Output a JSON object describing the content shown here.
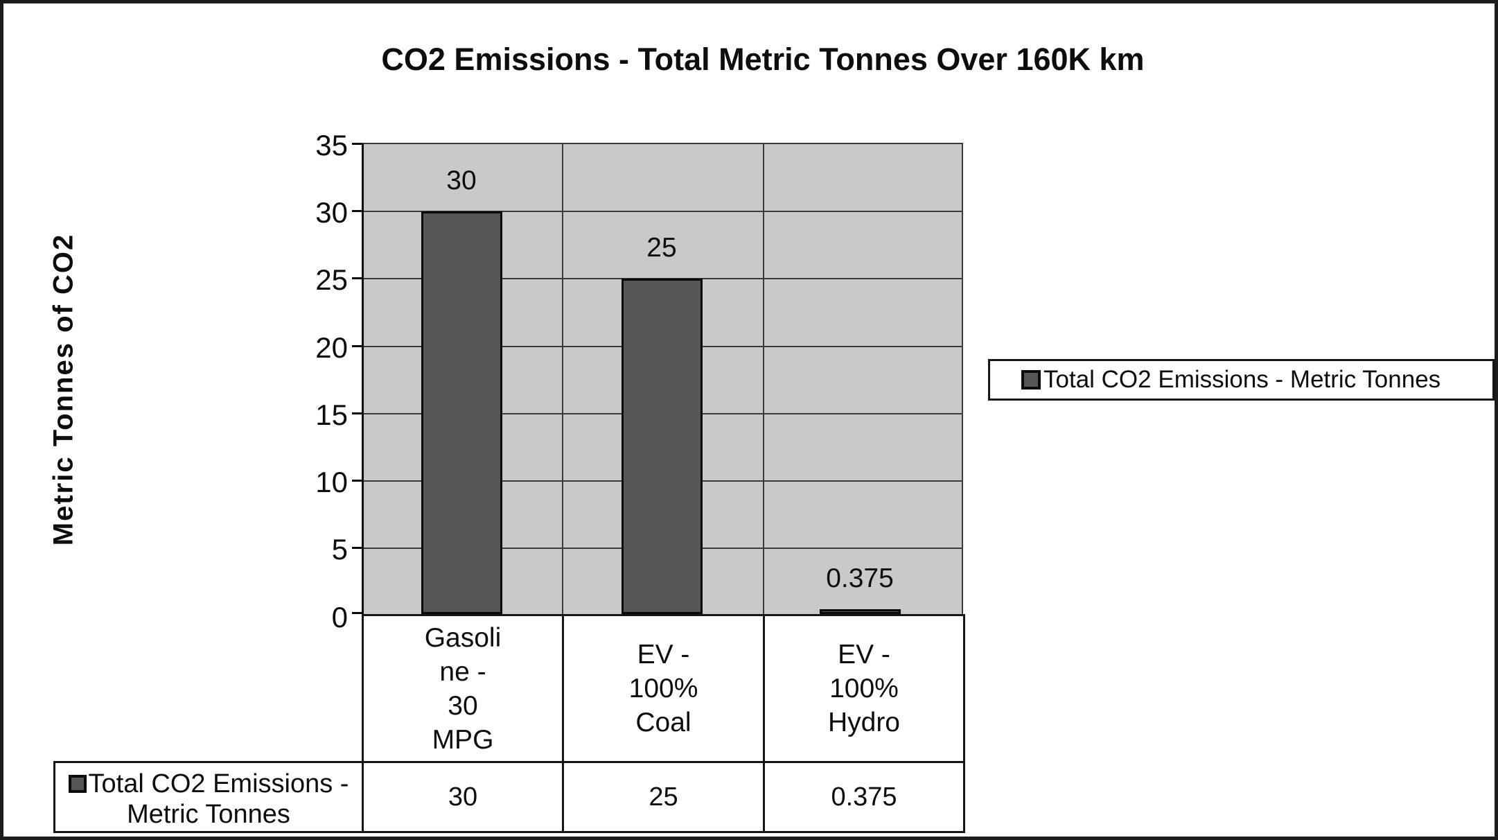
{
  "chart_data": {
    "type": "bar",
    "title": "CO2 Emissions - Total Metric Tonnes Over 160K km",
    "ylabel": "Metric Tonnes of CO2",
    "xlabel": "",
    "categories": [
      "Gasoline - 30 MPG",
      "EV - 100% Coal",
      "EV - 100% Hydro"
    ],
    "category_labels_wrapped": [
      "Gasoli\nne -\n30\nMPG",
      "EV -\n100%\nCoal",
      "EV -\n100%\nHydro"
    ],
    "series": [
      {
        "name": "Total CO2 Emissions - Metric Tonnes",
        "values": [
          30,
          25,
          0.375
        ]
      }
    ],
    "value_labels": [
      "30",
      "25",
      "0.375"
    ],
    "ylim": [
      0,
      35
    ],
    "ytick_step": 5,
    "yticks": [
      "35",
      "30",
      "25",
      "20",
      "15",
      "10",
      "5",
      "0"
    ],
    "grid": true,
    "legend_position": "right",
    "plot_bg_color": "#c9c9c9",
    "bar_color": "#565656",
    "data_table": {
      "row_header": "Total CO2 Emissions -\nMetric Tonnes",
      "values": [
        "30",
        "25",
        "0.375"
      ]
    }
  },
  "legend": {
    "label": "Total CO2 Emissions - Metric Tonnes"
  }
}
